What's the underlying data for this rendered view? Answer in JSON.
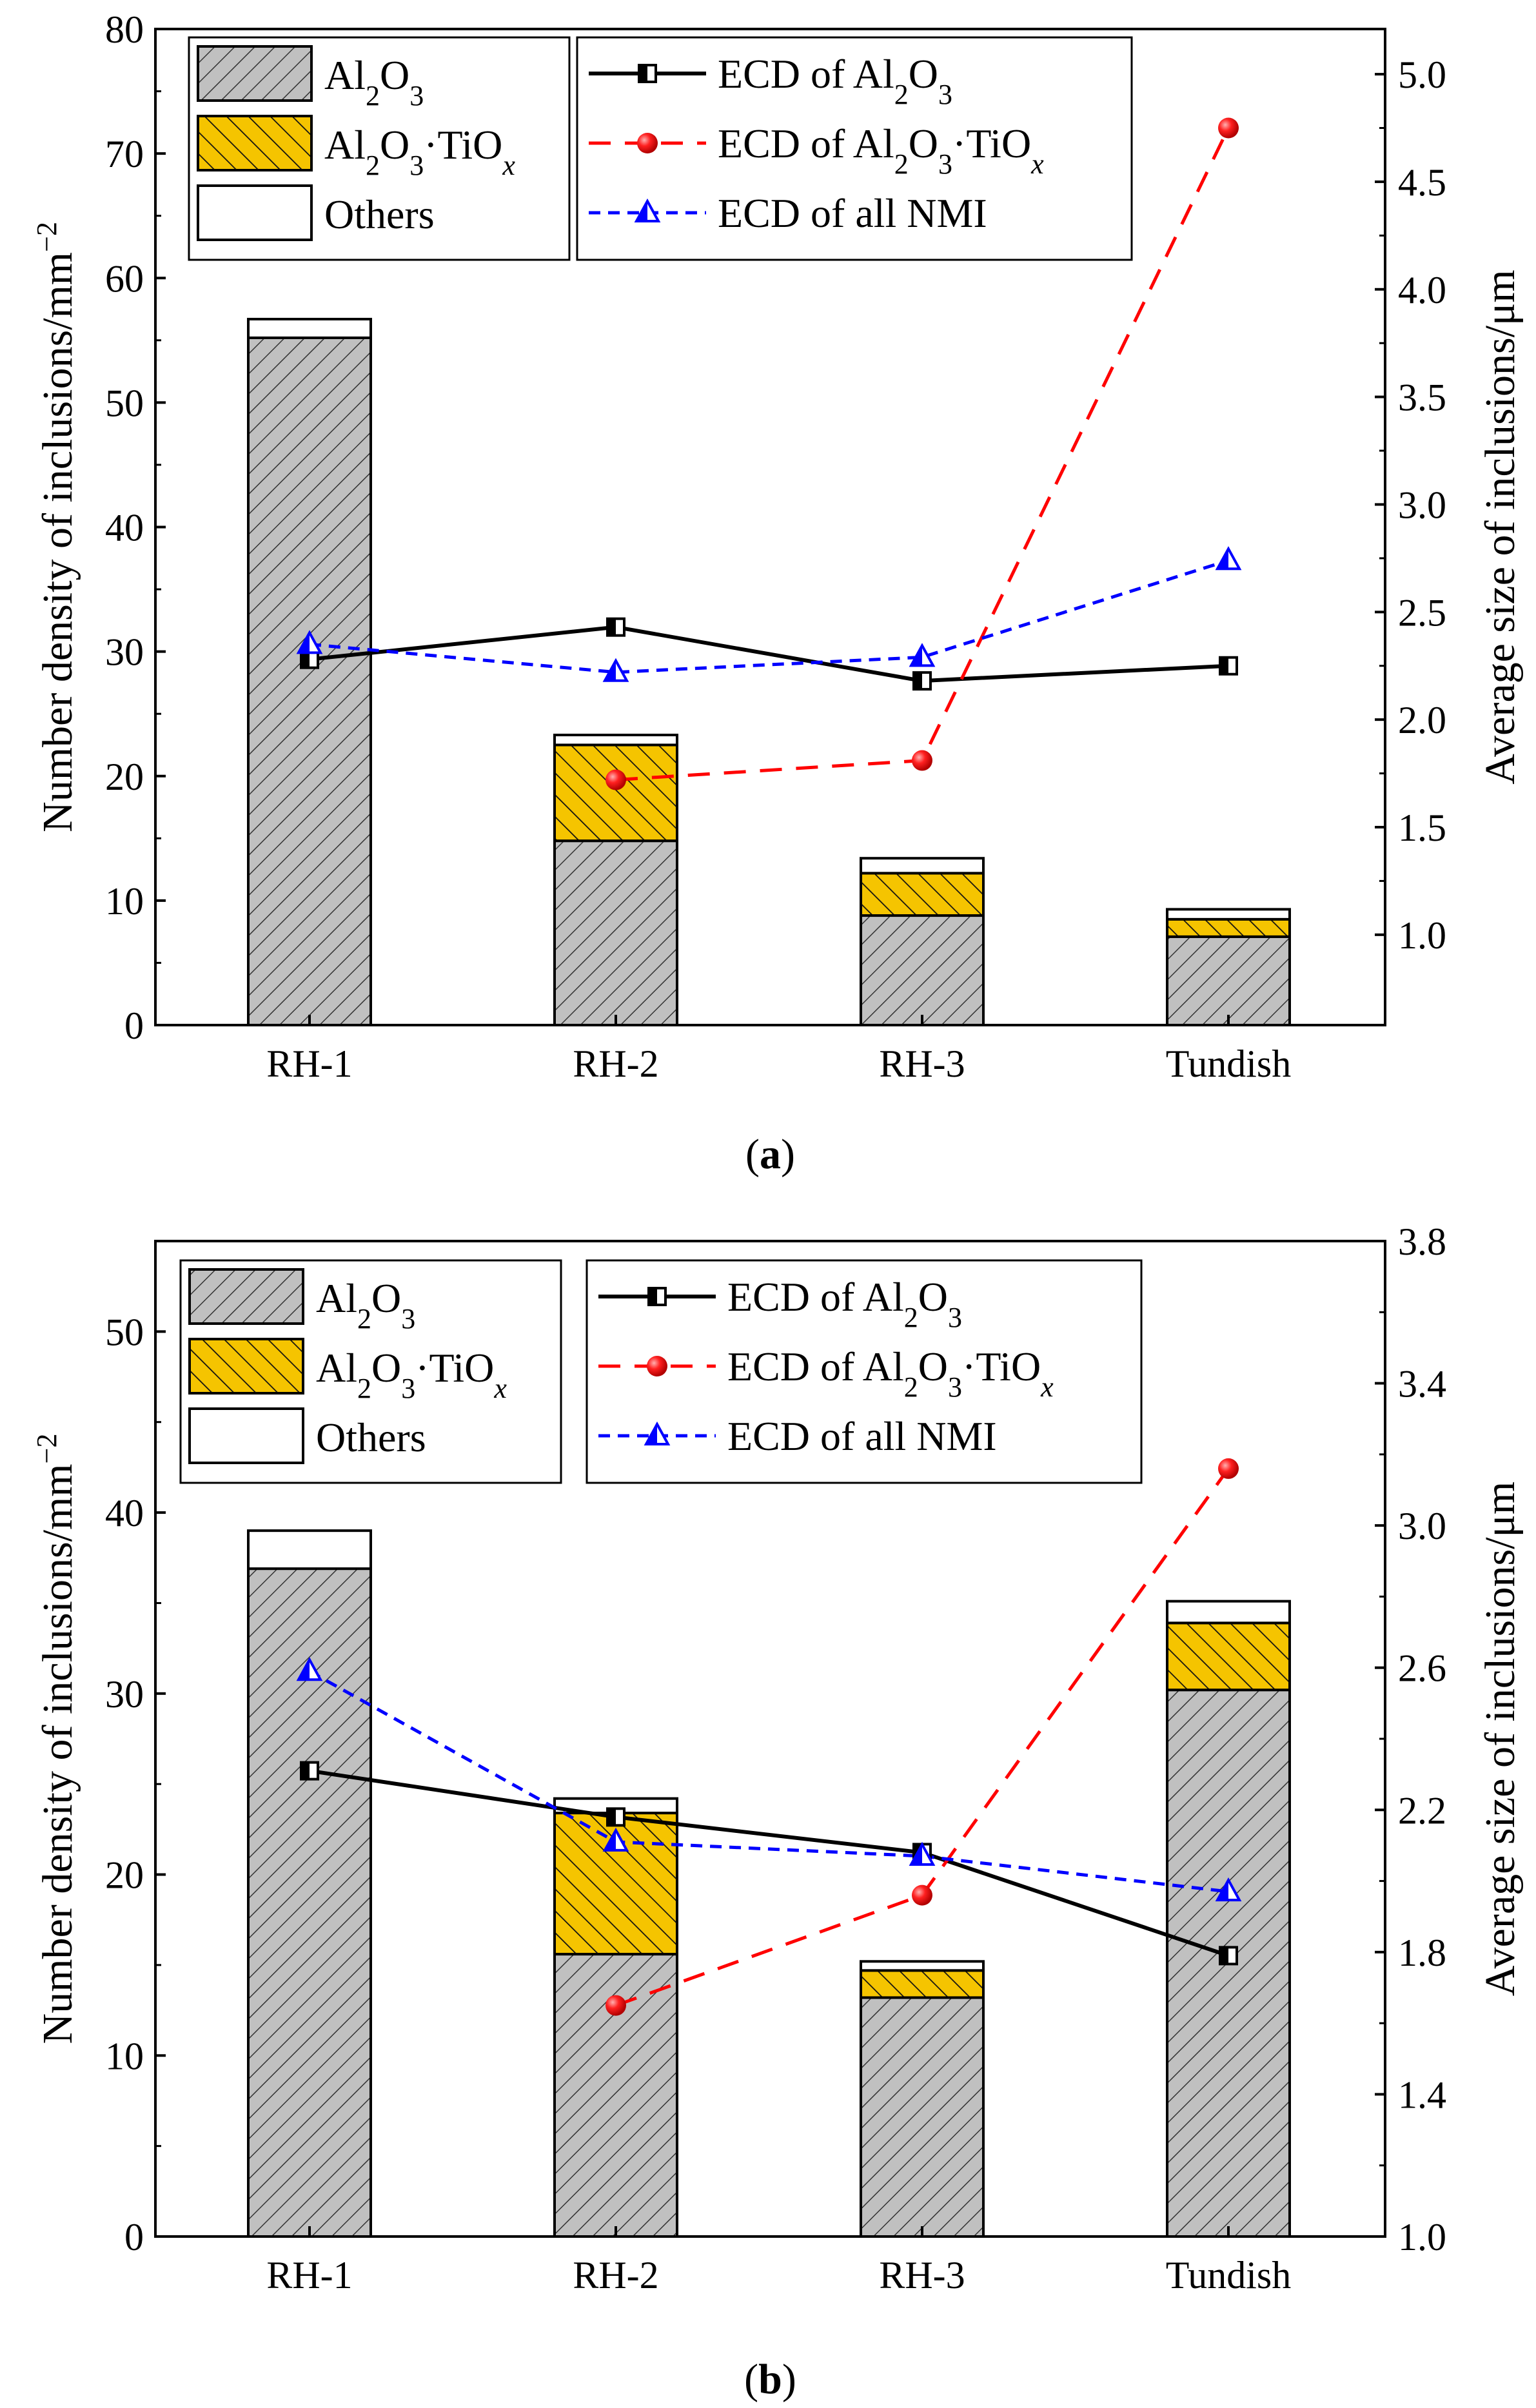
{
  "chart_data": [
    {
      "type": "bar",
      "panel_label": "(a)",
      "categories": [
        "RH-1",
        "RH-2",
        "RH-3",
        "Tundish"
      ],
      "stack_series": [
        {
          "name": "Al2O3",
          "values": [
            55.2,
            14.8,
            8.8,
            7.1
          ]
        },
        {
          "name": "Al2O3·TiOx",
          "values": [
            0,
            7.7,
            3.4,
            1.4
          ]
        },
        {
          "name": "Others",
          "values": [
            1.5,
            0.8,
            1.2,
            0.8
          ]
        }
      ],
      "line_series": [
        {
          "name": "ECD of Al2O3",
          "values": [
            2.28,
            2.43,
            2.18,
            2.25
          ]
        },
        {
          "name": "ECD of Al2O3·TiOx",
          "values": [
            null,
            1.72,
            1.81,
            4.75
          ]
        },
        {
          "name": "ECD of all NMI",
          "values": [
            2.35,
            2.22,
            2.29,
            2.74
          ]
        }
      ],
      "ylabel": "Number density of inclusions/mm",
      "ylabel_sup": "−2",
      "y2label": "Average size of inclusions/μm",
      "ylim": [
        0,
        80
      ],
      "yticks": [
        0,
        10,
        20,
        30,
        40,
        50,
        60,
        70,
        80
      ],
      "y2lim": [
        0.58,
        5.21
      ],
      "y2ticks": [
        1.0,
        1.5,
        2.0,
        2.5,
        3.0,
        3.5,
        4.0,
        4.5,
        5.0
      ],
      "y2_decimals": 1
    },
    {
      "type": "bar",
      "panel_label": "(b)",
      "categories": [
        "RH-1",
        "RH-2",
        "RH-3",
        "Tundish"
      ],
      "stack_series": [
        {
          "name": "Al2O3",
          "values": [
            36.9,
            15.6,
            13.2,
            30.2
          ]
        },
        {
          "name": "Al2O3·TiOx",
          "values": [
            0,
            7.8,
            1.5,
            3.7
          ]
        },
        {
          "name": "Others",
          "values": [
            2.1,
            0.8,
            0.5,
            1.2
          ]
        }
      ],
      "line_series": [
        {
          "name": "ECD of Al2O3",
          "values": [
            2.31,
            2.18,
            2.08,
            1.79
          ]
        },
        {
          "name": "ECD of Al2O3·TiOx",
          "values": [
            null,
            1.65,
            1.96,
            3.16
          ]
        },
        {
          "name": "ECD of all NMI",
          "values": [
            2.59,
            2.11,
            2.07,
            1.97
          ]
        }
      ],
      "ylabel": "Number density of inclusions/mm",
      "ylabel_sup": "−2",
      "y2label": "Average size of inclusions/μm",
      "ylim": [
        0,
        55
      ],
      "yticks": [
        0,
        10,
        20,
        30,
        40,
        50
      ],
      "y2lim": [
        1.0,
        3.8
      ],
      "y2ticks": [
        1.0,
        1.4,
        1.8,
        2.2,
        2.6,
        3.0,
        3.4,
        3.8
      ],
      "y2_decimals": 1
    }
  ],
  "colors": {
    "al2o3_fill": "#c0c0c0",
    "al2o3_tiox_fill": "#f5c400",
    "others_fill": "#ffffff",
    "ecd_al2o3_line": "#000000",
    "ecd_al2o3_tiox_line": "#ff0000",
    "ecd_all_nmi_line": "#0000ff"
  }
}
